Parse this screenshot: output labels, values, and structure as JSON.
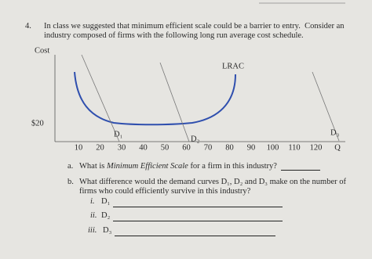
{
  "question": {
    "number": "4.",
    "lines": [
      "In class we suggested that minimum efficient scale could be a barrier to entry.  Consider an",
      "industry composed of firms with the following long run average cost schedule."
    ]
  },
  "figure": {
    "y_label": "Cost",
    "y_value": "$20",
    "curve_label": "LRAC",
    "x_ticks": [
      10,
      20,
      30,
      40,
      50,
      60,
      70,
      80,
      90,
      100,
      110,
      120
    ],
    "x_label": "Q",
    "demand_labels": [
      "D₁",
      "D₂",
      "D₃"
    ]
  },
  "part_a": {
    "letter": "a.",
    "before": "What is ",
    "emphasis": "Minimum Efficient Scale",
    "after": " for a firm in this industry?"
  },
  "part_b": {
    "letter": "b.",
    "lines": [
      "What difference would the demand curves D₁, D₂ and D₃ make on the number of",
      "firms who could efficiently survive in this industry?"
    ],
    "items": [
      {
        "numeral": "i.",
        "label": "D₁"
      },
      {
        "numeral": "ii.",
        "label": "D₂"
      },
      {
        "numeral": "iii.",
        "label": "D₃"
      }
    ]
  }
}
